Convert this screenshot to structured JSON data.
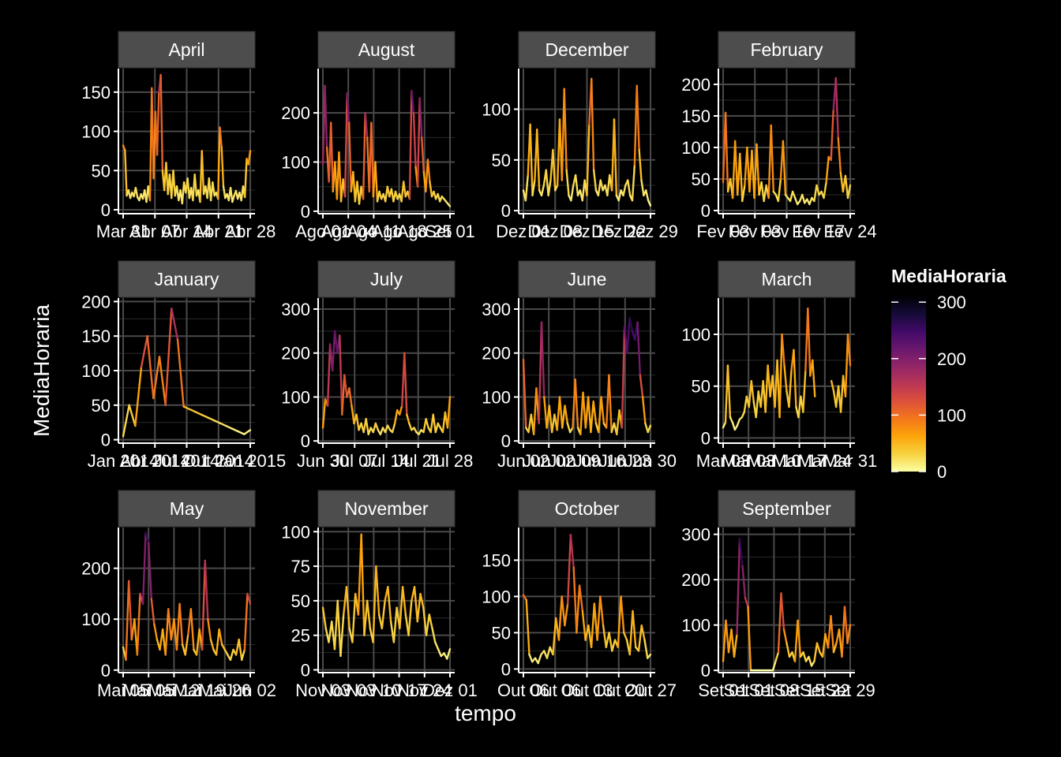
{
  "chart_data": {
    "type": "line",
    "xlabel": "tempo",
    "ylabel": "MediaHoraria",
    "legend": {
      "title": "MediaHoraria",
      "position": "right",
      "ticks": [
        0,
        100,
        200,
        300
      ],
      "range": [
        0,
        310
      ],
      "colors": [
        "#FCFFA4",
        "#F7D340",
        "#FCA50A",
        "#F37819",
        "#DD513A",
        "#BA3655",
        "#932667",
        "#6A176E",
        "#420A68",
        "#160B39",
        "#000004"
      ]
    },
    "panel_bg": "#000000",
    "grid_color": "#4a4a4a",
    "strip_bg": "#4d4d4d",
    "panels": [
      {
        "title": "April",
        "ylim": [
          -5,
          180
        ],
        "yticks": [
          0,
          50,
          100,
          150
        ],
        "xticks": [
          "Mar 31",
          "Abr 07",
          "Abr 14",
          "Abr 21",
          "Abr 28"
        ],
        "values": [
          82,
          76,
          18,
          25,
          15,
          22,
          17,
          28,
          16,
          12,
          20,
          14,
          25,
          10,
          30,
          12,
          155,
          40,
          125,
          70,
          150,
          172,
          50,
          25,
          60,
          20,
          45,
          15,
          50,
          18,
          30,
          12,
          25,
          8,
          35,
          22,
          40,
          15,
          28,
          12,
          45,
          18,
          25,
          10,
          75,
          20,
          30,
          15,
          40,
          12,
          35,
          18,
          22,
          14,
          105,
          80,
          30,
          15,
          20,
          12,
          28,
          10,
          18,
          24,
          14,
          22,
          12,
          30,
          16,
          65,
          58,
          75
        ]
      },
      {
        "title": "August",
        "ylim": [
          -5,
          290
        ],
        "yticks": [
          0,
          100,
          200
        ],
        "xticks": [
          "Ago 01",
          "Ago 04",
          "Ago 11",
          "Ago 18",
          "Ago 25",
          "Set 01"
        ],
        "values": [
          95,
          255,
          130,
          60,
          180,
          40,
          100,
          25,
          120,
          20,
          65,
          30,
          240,
          180,
          40,
          80,
          20,
          60,
          15,
          50,
          25,
          200,
          150,
          40,
          180,
          30,
          100,
          20,
          40,
          25,
          35,
          20,
          50,
          30,
          45,
          20,
          40,
          25,
          35,
          20,
          60,
          30,
          40,
          25,
          245,
          200,
          90,
          50,
          230,
          150,
          80,
          40,
          105,
          60,
          30,
          40,
          25,
          35,
          20,
          30,
          25,
          20,
          15,
          10
        ]
      },
      {
        "title": "December",
        "ylim": [
          -3,
          140
        ],
        "yticks": [
          0,
          50,
          100
        ],
        "xticks": [
          "Dez 01",
          "Dez 08",
          "Dez 15",
          "Dez 22",
          "Dez 29"
        ],
        "values": [
          20,
          10,
          35,
          85,
          15,
          30,
          80,
          20,
          15,
          25,
          40,
          15,
          30,
          60,
          20,
          25,
          90,
          30,
          120,
          40,
          15,
          10,
          25,
          35,
          15,
          20,
          10,
          30,
          15,
          85,
          130,
          40,
          20,
          15,
          30,
          20,
          25,
          15,
          35,
          20,
          90,
          15,
          10,
          20,
          15,
          25,
          30,
          15,
          10,
          45,
          123,
          60,
          30,
          15,
          20,
          10,
          5
        ]
      },
      {
        "title": "February",
        "ylim": [
          -5,
          225
        ],
        "yticks": [
          0,
          50,
          100,
          150,
          200
        ],
        "xticks": [
          "Fev 03",
          "Fev 03",
          "Fev 10",
          "Fev 17",
          "Fev 24"
        ],
        "values": [
          45,
          155,
          30,
          50,
          20,
          110,
          25,
          90,
          15,
          40,
          100,
          30,
          95,
          20,
          105,
          25,
          45,
          15,
          40,
          20,
          135,
          30,
          25,
          15,
          50,
          110,
          25,
          20,
          15,
          30,
          20,
          10,
          15,
          25,
          12,
          18,
          10,
          20,
          15,
          40,
          25,
          30,
          20,
          45,
          85,
          80,
          160,
          210,
          115,
          60,
          30,
          55,
          20,
          40
        ]
      },
      {
        "title": "January",
        "ylim": [
          -5,
          205
        ],
        "yticks": [
          0,
          50,
          100,
          150,
          200
        ],
        "xticks": [
          "Jan 2014",
          "Abr 2014",
          "Jul 2014",
          "Out 2014",
          "Jan 2015"
        ],
        "values": [
          5,
          50,
          20,
          105,
          150,
          60,
          120,
          50,
          190,
          145,
          48,
          44,
          40,
          36,
          32,
          28,
          24,
          20,
          16,
          12,
          8,
          14
        ]
      },
      {
        "title": "July",
        "ylim": [
          -5,
          325
        ],
        "yticks": [
          0,
          100,
          200,
          300
        ],
        "xticks": [
          "Jun 30",
          "Jul 07",
          "Jul 14",
          "Jul 21",
          "Jul 28"
        ],
        "values": [
          30,
          95,
          80,
          220,
          160,
          250,
          200,
          240,
          60,
          150,
          100,
          120,
          80,
          40,
          60,
          25,
          40,
          20,
          50,
          15,
          30,
          20,
          40,
          25,
          15,
          30,
          20,
          35,
          25,
          20,
          40,
          70,
          60,
          80,
          200,
          60,
          40,
          25,
          30,
          20,
          15,
          25,
          20,
          50,
          30,
          20,
          60,
          20,
          40,
          30,
          20,
          65,
          30,
          100
        ]
      },
      {
        "title": "June",
        "ylim": [
          -5,
          325
        ],
        "yticks": [
          0,
          100,
          200,
          300
        ],
        "xticks": [
          "Jun 02",
          "Jun 02",
          "Jun 09",
          "Jun 16",
          "Jun 23",
          "Jun 30"
        ],
        "values": [
          185,
          30,
          20,
          60,
          15,
          120,
          40,
          270,
          100,
          30,
          80,
          20,
          60,
          25,
          100,
          30,
          80,
          40,
          20,
          30,
          140,
          30,
          15,
          110,
          30,
          100,
          20,
          90,
          40,
          20,
          100,
          40,
          30,
          150,
          20,
          40,
          15,
          70,
          30,
          260,
          200,
          280,
          250,
          230,
          270,
          150,
          100,
          40,
          20,
          35
        ]
      },
      {
        "title": "March",
        "ylim": [
          -5,
          135
        ],
        "yticks": [
          0,
          50,
          100
        ],
        "xticks": [
          "Mar 03",
          "Mar 03",
          "Mar 10",
          "Mar 17",
          "Mar 24",
          "Mar 31"
        ],
        "values": [
          10,
          15,
          70,
          20,
          15,
          8,
          12,
          18,
          20,
          25,
          40,
          30,
          55,
          35,
          20,
          45,
          30,
          55,
          25,
          70,
          40,
          60,
          30,
          75,
          20,
          100,
          70,
          45,
          30,
          65,
          85,
          30,
          20,
          40,
          25,
          65,
          125,
          60,
          75,
          40,
          null,
          null,
          null,
          null,
          null,
          null,
          55,
          45,
          30,
          50,
          25,
          60,
          40,
          100,
          70
        ]
      },
      {
        "title": "May",
        "ylim": [
          -5,
          280
        ],
        "yticks": [
          0,
          100,
          200
        ],
        "xticks": [
          "Mai 05",
          "Mai 05",
          "Mai 12",
          "Mai 19",
          "Mai 26",
          "Jun 02"
        ],
        "values": [
          45,
          20,
          175,
          60,
          100,
          30,
          150,
          130,
          270,
          250,
          140,
          90,
          60,
          40,
          80,
          30,
          120,
          60,
          100,
          40,
          130,
          50,
          30,
          70,
          120,
          40,
          30,
          80,
          40,
          215,
          100,
          60,
          40,
          30,
          80,
          50,
          40,
          30,
          20,
          40,
          30,
          60,
          20,
          40,
          150,
          130
        ]
      },
      {
        "title": "November",
        "ylim": [
          -2,
          103
        ],
        "yticks": [
          0,
          25,
          50,
          75,
          100
        ],
        "xticks": [
          "Nov 03",
          "Nov 03",
          "Nov 10",
          "Nov 17",
          "Nov 24",
          "Dez 01"
        ],
        "values": [
          45,
          30,
          20,
          35,
          15,
          50,
          10,
          40,
          60,
          30,
          20,
          55,
          40,
          98,
          25,
          50,
          30,
          20,
          75,
          40,
          30,
          50,
          60,
          35,
          20,
          45,
          30,
          60,
          40,
          25,
          50,
          60,
          35,
          55,
          45,
          25,
          40,
          30,
          20,
          15,
          10,
          12,
          8,
          15
        ]
      },
      {
        "title": "October",
        "ylim": [
          -5,
          195
        ],
        "yticks": [
          0,
          50,
          100,
          150
        ],
        "xticks": [
          "Out 06",
          "Out 06",
          "Out 13",
          "Out 20",
          "Out 27"
        ],
        "values": [
          102,
          95,
          20,
          10,
          15,
          8,
          20,
          25,
          15,
          30,
          20,
          70,
          40,
          100,
          60,
          90,
          185,
          140,
          50,
          115,
          80,
          40,
          60,
          30,
          90,
          40,
          100,
          60,
          30,
          50,
          25,
          40,
          30,
          100,
          50,
          40,
          20,
          80,
          30,
          25,
          60,
          40,
          15,
          20
        ]
      },
      {
        "title": "September",
        "ylim": [
          -5,
          315
        ],
        "yticks": [
          0,
          100,
          200,
          300
        ],
        "xticks": [
          "Set 01",
          "Set 01",
          "Set 08",
          "Set 15",
          "Set 22",
          "Set 29"
        ],
        "values": [
          20,
          110,
          40,
          90,
          30,
          80,
          290,
          230,
          160,
          140,
          0,
          0,
          0,
          0,
          0,
          0,
          0,
          0,
          0,
          20,
          40,
          170,
          90,
          60,
          30,
          40,
          20,
          110,
          30,
          40,
          20,
          30,
          10,
          20,
          60,
          40,
          30,
          80,
          50,
          120,
          40,
          60,
          90,
          30,
          140,
          60,
          100
        ]
      }
    ]
  }
}
